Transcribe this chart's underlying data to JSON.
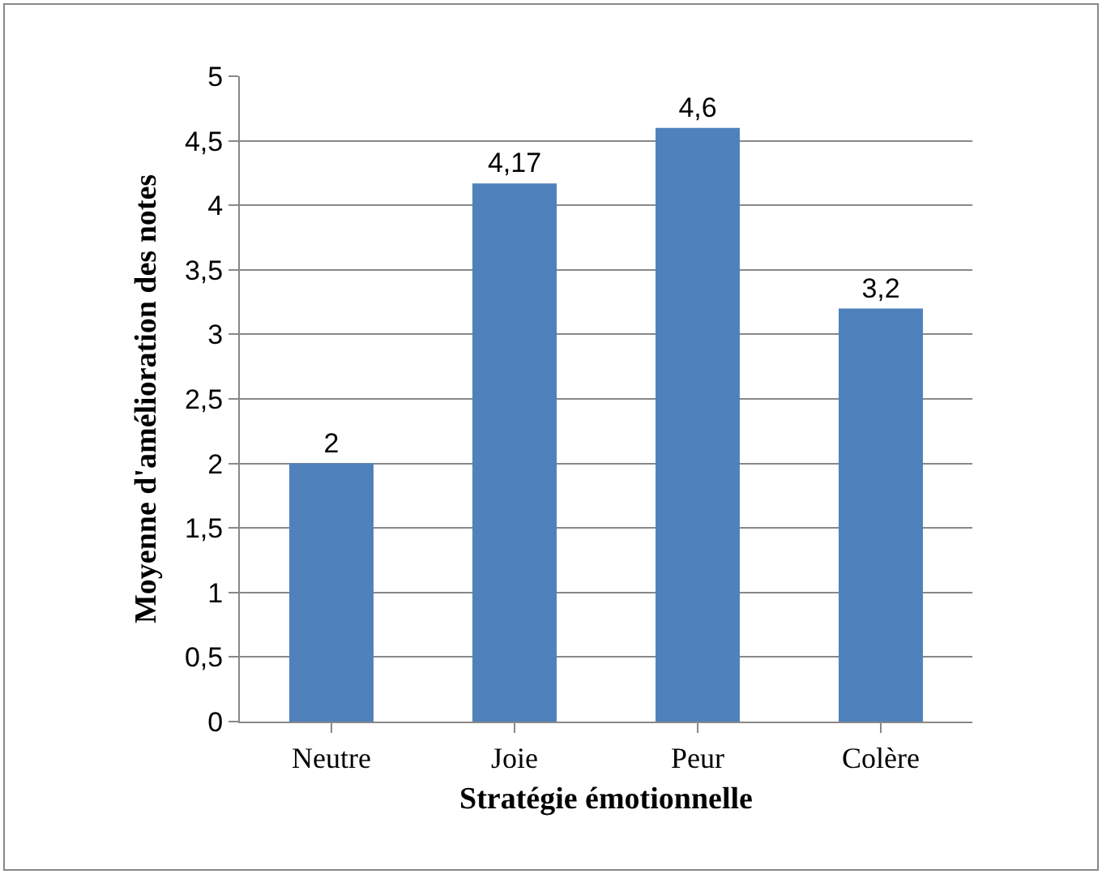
{
  "chart_data": {
    "type": "bar",
    "xlabel": "Stratégie émotionnelle",
    "ylabel": "Moyenne d'amélioration des notes",
    "categories": [
      "Neutre",
      "Joie",
      "Peur",
      "Colère"
    ],
    "values": [
      2,
      4.17,
      4.6,
      3.2
    ],
    "value_labels": [
      "2",
      "4,17",
      "4,6",
      "3,2"
    ],
    "color": "#4f81bd",
    "ylim": [
      0,
      5
    ],
    "yticks": [
      0,
      {
        "value": 0.5,
        "label": "0,5"
      },
      1,
      {
        "value": 1.5,
        "label": "1,5"
      },
      2,
      {
        "value": 2.5,
        "label": "2,5"
      },
      3,
      {
        "value": 3.5,
        "label": "3,5"
      },
      4,
      {
        "value": 4.5,
        "label": "4,5"
      },
      5
    ],
    "grid": "y"
  }
}
